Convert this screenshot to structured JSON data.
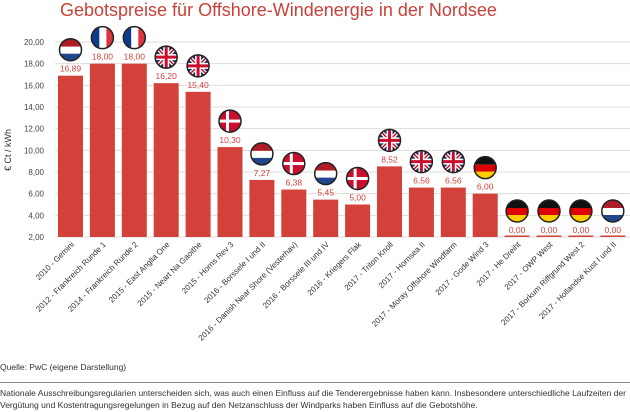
{
  "chart_data": {
    "type": "bar",
    "title": "Gebotspreise für Offshore-Windenergie in der Nordsee",
    "ylabel": "€ Ct / kWh",
    "xlabel": "",
    "ylim": [
      2,
      20
    ],
    "yticks": [
      "2,00",
      "4,00",
      "6,00",
      "8,00",
      "10,00",
      "12,00",
      "14,00",
      "16,00",
      "18,00",
      "20,00"
    ],
    "grid": true,
    "bar_color": "#d2423a",
    "categories": [
      "2010 - Gemini",
      "2012 - Frankreich Runde 1",
      "2014 - Frankreich Runde 2",
      "2015 - East Anglia One",
      "2015 - Neart Na Gaoithe",
      "2015 - Horns Rev 3",
      "2016 - Borssele I und II",
      "2016 - Danish Near Shore (Vesterhav)",
      "2016 - Borssele III und IV",
      "2016 - Kriegers Flak",
      "2017 - Triton Knoll",
      "2017 - Hornsea II",
      "2017 - Moray Offshore Windfarm",
      "2017 - Gode Wind 3",
      "2017 - He Dreiht",
      "2017 - OWP West",
      "2017 - Borkum Riffgrund West 2",
      "2017 - Hollandse Kust I und II"
    ],
    "values": [
      16.89,
      18.0,
      18.0,
      16.2,
      15.4,
      10.3,
      7.27,
      6.38,
      5.45,
      5.0,
      8.52,
      6.56,
      6.56,
      6.0,
      0.0,
      0.0,
      0.0,
      0.0
    ],
    "value_labels": [
      "16,89",
      "18,00",
      "18,00",
      "16,20",
      "15,40",
      "10,30",
      "7,27",
      "6,38",
      "5,45",
      "5,00",
      "8,52",
      "6,56",
      "6,56",
      "6,00",
      "0,00",
      "0,00",
      "0,00",
      "0,00"
    ],
    "flags": [
      "nl",
      "fr",
      "fr",
      "uk",
      "uk",
      "dk",
      "nl",
      "dk",
      "nl",
      "dk",
      "uk",
      "uk",
      "uk",
      "de",
      "de",
      "de",
      "de",
      "nl"
    ]
  },
  "source": "Quelle: PwC (eigene Darstellung)",
  "note": "Nationale Ausschreibungsregularien unterscheiden sich, was auch einen Einfluss auf die Tenderergebnisse haben kann. Insbesondere unterschiedliche Laufzeiten der Vergütung und Kostentragungsregelungen in Bezug auf den Netzanschluss der Windparks haben Einfluss auf die Gebotshöhe."
}
